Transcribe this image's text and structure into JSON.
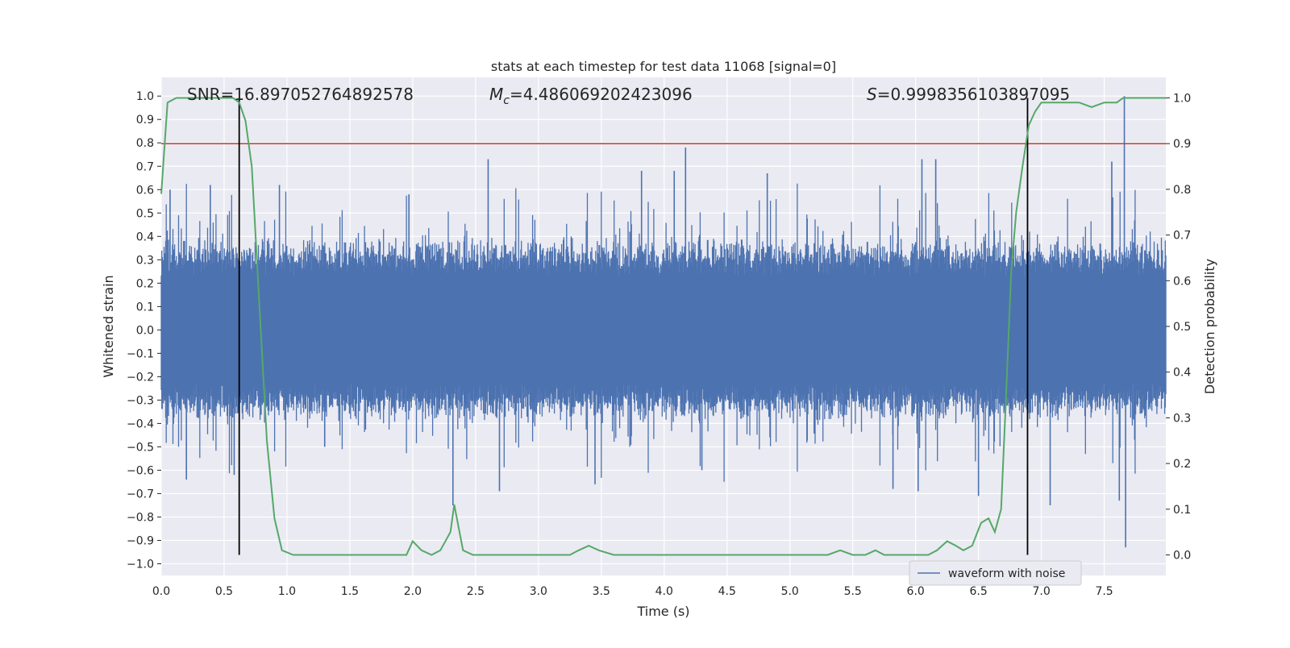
{
  "chart_data": {
    "type": "line",
    "title": "stats at each timestep for test data 11068 [signal=0]",
    "xlabel": "Time (s)",
    "ylabel": "Whitened strain",
    "y2label": "Detection probability",
    "xlim": [
      0.0,
      7.99
    ],
    "ylim": [
      -1.05,
      1.08
    ],
    "y2lim": [
      -0.045,
      1.045
    ],
    "grid": true,
    "legend_position": "lower-right",
    "x_ticks": [
      "0.0",
      "0.5",
      "1.0",
      "1.5",
      "2.0",
      "2.5",
      "3.0",
      "3.5",
      "4.0",
      "4.5",
      "5.0",
      "5.5",
      "6.0",
      "6.5",
      "7.0",
      "7.5"
    ],
    "y_ticks": [
      "1.0",
      "0.9",
      "0.8",
      "0.7",
      "0.6",
      "0.5",
      "0.4",
      "0.3",
      "0.2",
      "0.1",
      "0.0",
      "−0.1",
      "−0.2",
      "−0.3",
      "−0.4",
      "−0.5",
      "−0.6",
      "−0.7",
      "−0.8",
      "−0.9",
      "−1.0"
    ],
    "y2_ticks": [
      "1.0",
      "0.9",
      "0.8",
      "0.7",
      "0.6",
      "0.5",
      "0.4",
      "0.3",
      "0.2",
      "0.1",
      "0.0"
    ],
    "annotations": {
      "snr": "SNR=16.897052764892578",
      "mc_symbol": "M",
      "mc_subscript": "c",
      "mc_value": "=4.486069202423096",
      "s_symbol": "S",
      "s_value": "=0.9998356103897095"
    },
    "threshold": {
      "y2": 0.9,
      "color": "#c0392b"
    },
    "vertical_lines": [
      {
        "x": 0.62,
        "y2_range": [
          0.0,
          1.0
        ]
      },
      {
        "x": 6.89,
        "y2_range": [
          0.0,
          1.0
        ]
      }
    ],
    "series": [
      {
        "name": "waveform with noise",
        "axis": "left",
        "color": "#4c72b0",
        "note_envelope_typical": 0.35,
        "peaks": [
          {
            "x": 0.07,
            "y": 0.6
          },
          {
            "x": 0.2,
            "y": -0.64
          },
          {
            "x": 0.39,
            "y": 0.62
          },
          {
            "x": 0.58,
            "y": -0.62
          },
          {
            "x": 0.94,
            "y": 0.62
          },
          {
            "x": 1.3,
            "y": -0.5
          },
          {
            "x": 1.97,
            "y": 0.58
          },
          {
            "x": 2.32,
            "y": -0.75
          },
          {
            "x": 2.6,
            "y": 0.73
          },
          {
            "x": 2.69,
            "y": -0.69
          },
          {
            "x": 3.45,
            "y": -0.66
          },
          {
            "x": 3.82,
            "y": 0.68
          },
          {
            "x": 4.08,
            "y": 0.68
          },
          {
            "x": 4.17,
            "y": 0.78
          },
          {
            "x": 4.3,
            "y": -0.6
          },
          {
            "x": 4.82,
            "y": 0.67
          },
          {
            "x": 5.82,
            "y": -0.68
          },
          {
            "x": 6.02,
            "y": -0.69
          },
          {
            "x": 6.05,
            "y": 0.73
          },
          {
            "x": 6.16,
            "y": 0.73
          },
          {
            "x": 6.5,
            "y": -0.71
          },
          {
            "x": 7.07,
            "y": -0.75
          },
          {
            "x": 7.56,
            "y": 0.72
          },
          {
            "x": 7.62,
            "y": -0.73
          },
          {
            "x": 7.66,
            "y": 1.0
          },
          {
            "x": 7.67,
            "y": -0.93
          }
        ]
      },
      {
        "name": "detection probability",
        "axis": "right",
        "color": "#55a868",
        "x": [
          0.0,
          0.05,
          0.12,
          0.2,
          0.3,
          0.4,
          0.5,
          0.57,
          0.62,
          0.67,
          0.72,
          0.78,
          0.84,
          0.9,
          0.96,
          1.05,
          1.2,
          1.4,
          1.6,
          1.8,
          1.95,
          2.0,
          2.07,
          2.15,
          2.22,
          2.3,
          2.33,
          2.4,
          2.48,
          2.6,
          2.8,
          3.0,
          3.25,
          3.32,
          3.4,
          3.48,
          3.6,
          3.8,
          4.0,
          4.2,
          4.5,
          4.8,
          5.1,
          5.3,
          5.4,
          5.5,
          5.6,
          5.68,
          5.75,
          5.9,
          6.1,
          6.17,
          6.25,
          6.32,
          6.38,
          6.45,
          6.52,
          6.58,
          6.63,
          6.68,
          6.72,
          6.76,
          6.8,
          6.85,
          6.9,
          6.95,
          7.0,
          7.05,
          7.1,
          7.2,
          7.3,
          7.4,
          7.5,
          7.6,
          7.65,
          7.7,
          7.8,
          7.9,
          7.99
        ],
        "y": [
          0.79,
          0.99,
          1.0,
          1.0,
          1.0,
          1.0,
          1.0,
          1.0,
          0.99,
          0.95,
          0.85,
          0.55,
          0.25,
          0.08,
          0.01,
          0.0,
          0.0,
          0.0,
          0.0,
          0.0,
          0.0,
          0.03,
          0.01,
          0.0,
          0.01,
          0.05,
          0.11,
          0.01,
          0.0,
          0.0,
          0.0,
          0.0,
          0.0,
          0.01,
          0.02,
          0.01,
          0.0,
          0.0,
          0.0,
          0.0,
          0.0,
          0.0,
          0.0,
          0.0,
          0.01,
          0.0,
          0.0,
          0.01,
          0.0,
          0.0,
          0.0,
          0.01,
          0.03,
          0.02,
          0.01,
          0.02,
          0.07,
          0.08,
          0.05,
          0.1,
          0.35,
          0.62,
          0.75,
          0.85,
          0.94,
          0.97,
          0.99,
          0.99,
          0.99,
          0.99,
          0.99,
          0.98,
          0.99,
          0.99,
          1.0,
          1.0,
          1.0,
          1.0,
          1.0
        ]
      }
    ],
    "legend": [
      "waveform with noise"
    ]
  }
}
